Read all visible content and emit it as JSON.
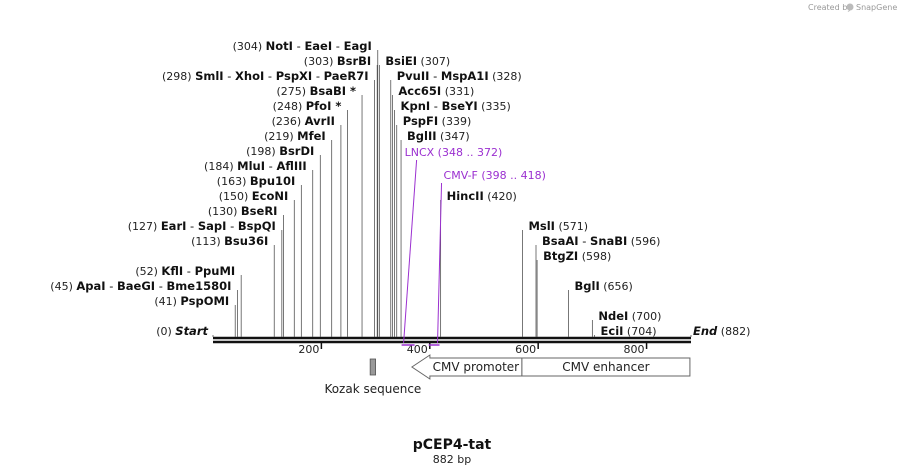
{
  "credit": {
    "prefix": "Created by",
    "brand": "SnapGene"
  },
  "plasmid": {
    "name": "pCEP4-tat",
    "length_label": "882 bp",
    "length": 882
  },
  "ruler": {
    "ticks": [
      200,
      400,
      600,
      800
    ]
  },
  "sites": [
    {
      "name": "NotI",
      "pos": 304,
      "row": 0,
      "side": "left",
      "group": [
        {
          "name": "NotI",
          "pos": 304
        },
        {
          "name": "EaeI",
          "pos": 304
        },
        {
          "name": "EagI",
          "pos": 304
        }
      ]
    },
    {
      "row": 1,
      "side": "left",
      "group": [
        {
          "name": "BsrBI",
          "pos": 303
        }
      ]
    },
    {
      "row": 1,
      "side": "right",
      "group": [
        {
          "name": "BsiEI",
          "pos": 307
        }
      ]
    },
    {
      "row": 2,
      "side": "left",
      "group": [
        {
          "name": "SmlI",
          "pos": 298
        },
        {
          "name": "XhoI",
          "pos": 298
        },
        {
          "name": "PspXI",
          "pos": 298
        },
        {
          "name": "PaeR7I",
          "pos": 298
        }
      ]
    },
    {
      "row": 2,
      "side": "right",
      "group": [
        {
          "name": "PvuII",
          "pos": 328
        },
        {
          "name": "MspA1I",
          "pos": 328
        }
      ]
    },
    {
      "row": 3,
      "side": "left",
      "group": [
        {
          "name": "BsaBI *",
          "pos": 275
        }
      ]
    },
    {
      "row": 3,
      "side": "right",
      "group": [
        {
          "name": "Acc65I",
          "pos": 331
        }
      ]
    },
    {
      "row": 4,
      "side": "left",
      "group": [
        {
          "name": "PfoI *",
          "pos": 248
        }
      ]
    },
    {
      "row": 4,
      "side": "right",
      "group": [
        {
          "name": "KpnI",
          "pos": 335
        },
        {
          "name": "BseYI",
          "pos": 335
        }
      ]
    },
    {
      "row": 5,
      "side": "left",
      "group": [
        {
          "name": "AvrII",
          "pos": 236
        }
      ]
    },
    {
      "row": 5,
      "side": "right",
      "group": [
        {
          "name": "PspFI",
          "pos": 339
        }
      ]
    },
    {
      "row": 6,
      "side": "left",
      "group": [
        {
          "name": "MfeI",
          "pos": 219
        }
      ]
    },
    {
      "row": 6,
      "side": "right",
      "group": [
        {
          "name": "BglII",
          "pos": 347
        }
      ]
    },
    {
      "row": 7,
      "side": "left",
      "group": [
        {
          "name": "BsrDI",
          "pos": 198
        }
      ]
    },
    {
      "row": 8,
      "side": "left",
      "group": [
        {
          "name": "MluI",
          "pos": 184
        },
        {
          "name": "AflIII",
          "pos": 184
        }
      ]
    },
    {
      "row": 9,
      "side": "left",
      "group": [
        {
          "name": "Bpu10I",
          "pos": 163
        }
      ]
    },
    {
      "row": 10,
      "side": "left",
      "group": [
        {
          "name": "EcoNI",
          "pos": 150
        }
      ]
    },
    {
      "row": 10,
      "side": "right2",
      "group": [
        {
          "name": "HincII",
          "pos": 420
        }
      ]
    },
    {
      "row": 11,
      "side": "left",
      "group": [
        {
          "name": "BseRI",
          "pos": 130
        }
      ]
    },
    {
      "row": 12,
      "side": "left",
      "group": [
        {
          "name": "EarI",
          "pos": 127
        },
        {
          "name": "SapI",
          "pos": 127
        },
        {
          "name": "BspQI",
          "pos": 127
        }
      ]
    },
    {
      "row": 12,
      "side": "right3",
      "group": [
        {
          "name": "MslI",
          "pos": 571
        }
      ]
    },
    {
      "row": 13,
      "side": "left",
      "group": [
        {
          "name": "Bsu36I",
          "pos": 113
        }
      ]
    },
    {
      "row": 13,
      "side": "right3",
      "group": [
        {
          "name": "BsaAI",
          "pos": 596
        },
        {
          "name": "SnaBI",
          "pos": 596
        }
      ]
    },
    {
      "row": 14,
      "side": "right3",
      "group": [
        {
          "name": "BtgZI",
          "pos": 598
        }
      ]
    },
    {
      "row": 15,
      "side": "left",
      "group": [
        {
          "name": "KflI",
          "pos": 52
        },
        {
          "name": "PpuMI",
          "pos": 52
        }
      ]
    },
    {
      "row": 16,
      "side": "left",
      "group": [
        {
          "name": "ApaI",
          "pos": 45
        },
        {
          "name": "BaeGI",
          "pos": 45
        },
        {
          "name": "Bme1580I",
          "pos": 45
        }
      ]
    },
    {
      "row": 16,
      "side": "right3",
      "group": [
        {
          "name": "BglI",
          "pos": 656
        }
      ]
    },
    {
      "row": 17,
      "side": "left",
      "group": [
        {
          "name": "PspOMI",
          "pos": 41
        }
      ]
    },
    {
      "row": 18,
      "side": "right3",
      "group": [
        {
          "name": "NdeI",
          "pos": 700
        }
      ]
    },
    {
      "row": 19,
      "side": "left",
      "group": [
        {
          "name": "Start",
          "pos": 0
        }
      ]
    },
    {
      "row": 19,
      "side": "right3",
      "group": [
        {
          "name": "EciI",
          "pos": 704
        }
      ]
    },
    {
      "row": 19,
      "side": "end",
      "group": [
        {
          "name": "End",
          "pos": 882
        }
      ]
    }
  ],
  "primers": [
    {
      "name": "LNCX",
      "range": "(348 .. 372)",
      "start": 348,
      "end": 372
    },
    {
      "name": "CMV-F",
      "range": "(398 .. 418)",
      "start": 398,
      "end": 418
    }
  ],
  "features": [
    {
      "name": "Kozak sequence",
      "start": 290,
      "end": 300,
      "type": "box"
    },
    {
      "name": "CMV promoter",
      "start": 367,
      "end": 570,
      "type": "arrow-left"
    },
    {
      "name": "CMV enhancer",
      "start": 570,
      "end": 880,
      "type": "box"
    }
  ],
  "colors": {
    "primer": "#9b30d0",
    "feature_stroke": "#666666",
    "kozak_fill": "#999999"
  }
}
